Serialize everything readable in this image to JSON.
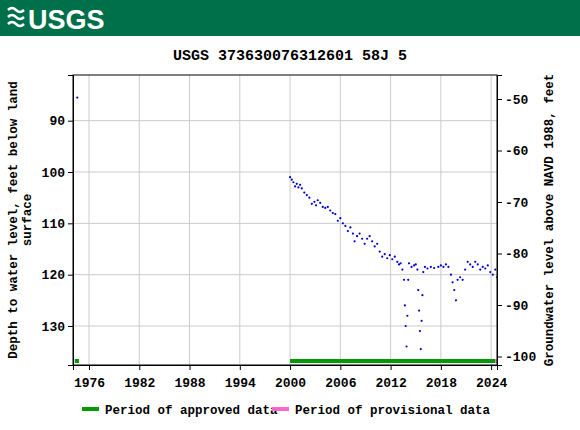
{
  "chart_data": {
    "type": "scatter",
    "header": "USGS",
    "title": "USGS 373630076312601 58J  5",
    "y_label": [
      "Depth to water level, feet below land",
      "surface"
    ],
    "y2_label": "Groundwater level above NAVD 1988, feet",
    "xlim": [
      1974.09,
      2024.7
    ],
    "xticks": [
      1976,
      1982,
      1988,
      1994,
      2000,
      2006,
      2012,
      2018,
      2024
    ],
    "ylim": [
      137.6,
      81.1
    ],
    "yticks": [
      90,
      100,
      110,
      120,
      130
    ],
    "y2lim": [
      -101.65,
      -45.34
    ],
    "y2ticks": [
      -50,
      -60,
      -70,
      -80,
      -90,
      -100
    ],
    "grid": true,
    "series": [
      {
        "name": "Depth to water level",
        "color": "#0000cc",
        "marker": "dot",
        "x": [
          1974.6,
          2000.0,
          2000.2,
          2000.4,
          2000.6,
          2000.8,
          2001.0,
          2001.2,
          2001.4,
          2001.7,
          2002.0,
          2002.3,
          2002.6,
          2002.9,
          2003.1,
          2003.3,
          2003.6,
          2003.9,
          2004.2,
          2004.5,
          2004.8,
          2005.1,
          2005.4,
          2005.7,
          2006.0,
          2006.3,
          2006.6,
          2006.9,
          2007.2,
          2007.5,
          2007.7,
          2008.0,
          2008.3,
          2008.6,
          2008.9,
          2009.2,
          2009.5,
          2009.8,
          2010.1,
          2010.4,
          2010.7,
          2011.0,
          2011.3,
          2011.6,
          2011.9,
          2012.2,
          2012.5,
          2012.8,
          2013.0,
          2013.2,
          2013.4,
          2013.6,
          2013.7,
          2013.8,
          2013.9,
          2014.0,
          2014.1,
          2014.2,
          2014.5,
          2014.8,
          2015.0,
          2015.2,
          2015.3,
          2015.4,
          2015.5,
          2015.6,
          2015.7,
          2015.8,
          2015.9,
          2016.1,
          2016.4,
          2016.8,
          2017.2,
          2017.7,
          2018.0,
          2018.3,
          2018.6,
          2018.9,
          2019.2,
          2019.4,
          2019.6,
          2019.8,
          2020.0,
          2020.3,
          2020.6,
          2020.9,
          2021.2,
          2021.5,
          2021.8,
          2022.1,
          2022.4,
          2022.7,
          2023.0,
          2023.3,
          2023.6,
          2023.9,
          2024.2,
          2024.5,
          2024.7
        ],
        "values": [
          85.5,
          101.0,
          101.5,
          102.0,
          102.8,
          102.3,
          103.0,
          102.5,
          103.2,
          104.0,
          104.5,
          105.0,
          106.2,
          105.8,
          106.5,
          105.5,
          106.0,
          106.8,
          107.0,
          106.8,
          107.5,
          108.0,
          108.2,
          109.5,
          109.0,
          110.0,
          110.5,
          111.5,
          110.8,
          112.0,
          113.5,
          112.5,
          112.0,
          113.0,
          114.0,
          113.0,
          112.5,
          113.5,
          114.5,
          114.0,
          115.5,
          116.5,
          116.0,
          116.8,
          116.2,
          117.0,
          116.5,
          117.5,
          118.0,
          117.8,
          119.0,
          121.0,
          126.0,
          130.0,
          134.0,
          128.0,
          121.0,
          117.8,
          118.5,
          118.2,
          118.0,
          119.0,
          123.0,
          127.0,
          131.0,
          134.5,
          129.0,
          124.0,
          119.5,
          118.5,
          118.8,
          118.5,
          118.7,
          118.5,
          118.2,
          118.5,
          118.0,
          118.5,
          120.0,
          121.5,
          123.0,
          125.0,
          121.0,
          120.5,
          121.0,
          119.0,
          117.5,
          118.0,
          118.5,
          117.5,
          118.0,
          119.0,
          118.5,
          118.8,
          118.2,
          119.5,
          120.0,
          119.0,
          120.5
        ]
      }
    ],
    "periods": [
      {
        "name": "Period of approved data",
        "color": "#009900",
        "ranges": [
          [
            1974.3,
            1974.8
          ],
          [
            2000.0,
            2024.5
          ]
        ]
      },
      {
        "name": "Period of provisional data",
        "color": "#ff66cc",
        "ranges": [
          [
            2024.5,
            2024.7
          ]
        ]
      }
    ]
  }
}
